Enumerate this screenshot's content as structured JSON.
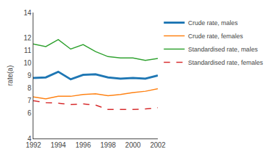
{
  "chart_data": {
    "type": "line",
    "ylabel": "rate(a)",
    "x": [
      1992,
      1993,
      1994,
      1995,
      1996,
      1997,
      1998,
      1999,
      2000,
      2001,
      2002
    ],
    "series": [
      {
        "name": "Crude rate, males",
        "values": [
          8.8,
          8.85,
          9.3,
          8.7,
          9.05,
          9.1,
          8.85,
          8.75,
          8.8,
          8.75,
          9.0
        ],
        "line_style": "solid"
      },
      {
        "name": "Crude rate, females",
        "values": [
          7.3,
          7.15,
          7.35,
          7.35,
          7.5,
          7.55,
          7.4,
          7.5,
          7.65,
          7.75,
          7.95
        ],
        "line_style": "solid"
      },
      {
        "name": "Standardised rate, males",
        "values": [
          11.5,
          11.3,
          11.85,
          11.1,
          11.45,
          10.9,
          10.5,
          10.4,
          10.4,
          10.2,
          10.35
        ],
        "line_style": "solid"
      },
      {
        "name": "Standardised rate, females",
        "values": [
          7.0,
          6.85,
          6.8,
          6.7,
          6.75,
          6.65,
          6.3,
          6.3,
          6.3,
          6.35,
          6.45
        ],
        "line_style": "dashed"
      }
    ],
    "xlim": [
      1992,
      2002
    ],
    "xticks": [
      1992,
      1994,
      1996,
      1998,
      2000,
      2002
    ],
    "ylim": [
      4,
      14
    ],
    "yticks": [
      4,
      6,
      7,
      8,
      9,
      10,
      11,
      12,
      14
    ],
    "grid": false,
    "legend": "upper right"
  }
}
